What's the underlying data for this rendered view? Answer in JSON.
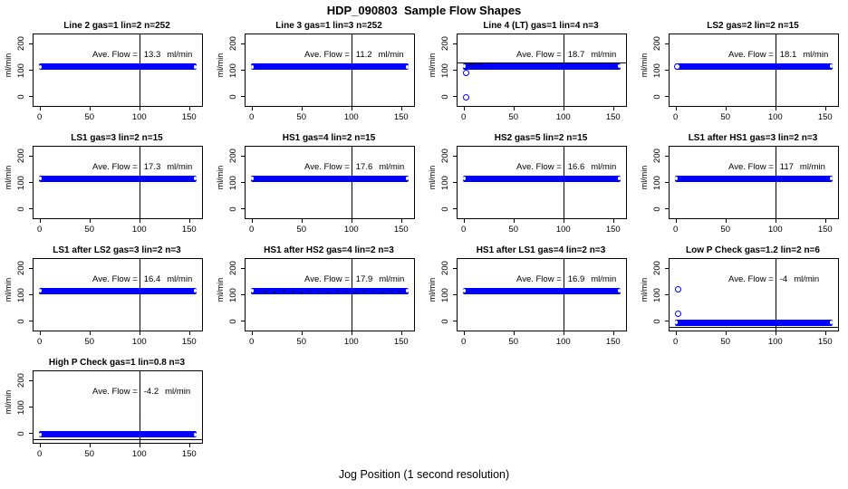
{
  "page": {
    "title": "HDP_090803  Sample Flow Shapes",
    "xlabel": "Jog Position (1 second resolution)"
  },
  "colors": {
    "band_blue": "#0000ff",
    "axis_black": "#000000",
    "background": "#ffffff",
    "dark_points": "#000055"
  },
  "panel_common": {
    "ylabel": "ml/min",
    "ave_label": "Ave. Flow =",
    "unit": "ml/min",
    "y_ticks": [
      {
        "label": "200",
        "value": 200
      },
      {
        "label": "100",
        "value": 100
      },
      {
        "label": "0",
        "value": 0
      }
    ],
    "x_ticks": [
      {
        "label": "0",
        "value": 0
      },
      {
        "label": "50",
        "value": 50
      },
      {
        "label": "100",
        "value": 100
      },
      {
        "label": "150",
        "value": 150
      }
    ],
    "vline_x": 100
  },
  "chart_data": {
    "type": "scatter",
    "title": "HDP_090803  Sample Flow Shapes",
    "xlabel": "Jog Position (1 second resolution)",
    "ylabel": "ml/min",
    "layout": "small multiples, 4 columns x 4 rows, 13 panels",
    "x_axis_range": [
      0,
      155
    ],
    "x_axis_ticks": [
      0,
      50,
      100,
      150
    ],
    "y_axis_ticks": [
      0,
      100,
      200
    ],
    "grid": false,
    "reference_vline_x": 100,
    "panels": [
      {
        "title": "Line 2 gas=1 lin=2 n=252",
        "ave_flow_display": "13.3",
        "flow_level": 113
      },
      {
        "title": "Line 3 gas=1 lin=3 n=252",
        "ave_flow_display": "11.2",
        "flow_level": 113
      },
      {
        "title": "Line 4 (LT) gas=1 lin=4 n=3",
        "ave_flow_display": "18.7",
        "flow_level": 114,
        "hline": 130,
        "outliers": [
          {
            "x": 2,
            "y": -5
          },
          {
            "x": 2,
            "y": 88
          }
        ],
        "ramp_points": [
          [
            4,
            122
          ],
          [
            6,
            126
          ],
          [
            8,
            128
          ],
          [
            10,
            129
          ],
          [
            13,
            128
          ],
          [
            16,
            126
          ]
        ]
      },
      {
        "title": "LS2 gas=2 lin=2 n=15",
        "ave_flow_display": "18.1",
        "flow_level": 114,
        "outliers": [
          {
            "x": 1,
            "y": 113
          }
        ]
      },
      {
        "title": "LS1 gas=3 lin=2 n=15",
        "ave_flow_display": "17.3",
        "flow_level": 114
      },
      {
        "title": "HS1 gas=4 lin=2 n=15",
        "ave_flow_display": "17.6",
        "flow_level": 114
      },
      {
        "title": "HS2 gas=5 lin=2 n=15",
        "ave_flow_display": "16.6",
        "flow_level": 114
      },
      {
        "title": "LS1 after HS1 gas=3 lin=2 n=3",
        "ave_flow_display": "117",
        "flow_level": 114
      },
      {
        "title": "LS1 after LS2 gas=3 lin=2 n=3",
        "ave_flow_display": "16.4",
        "flow_level": 114
      },
      {
        "title": "HS1 after HS2 gas=4 lin=2 n=3",
        "ave_flow_display": "17.9",
        "flow_level": 114,
        "dark_band": true
      },
      {
        "title": "HS1 after LS1 gas=4 lin=2 n=3",
        "ave_flow_display": "16.9",
        "flow_level": 114
      },
      {
        "title": "Low P Check gas=1.2 lin=2 n=6",
        "ave_flow_display": "-4",
        "flow_level": -5,
        "hline": -20,
        "outliers": [
          {
            "x": 2,
            "y": 120
          },
          {
            "x": 2,
            "y": 25
          }
        ]
      },
      {
        "title": "High P Check gas=1 lin=0.8 n=3",
        "ave_flow_display": "-4.2",
        "flow_level": -4,
        "hline": -20
      }
    ]
  }
}
